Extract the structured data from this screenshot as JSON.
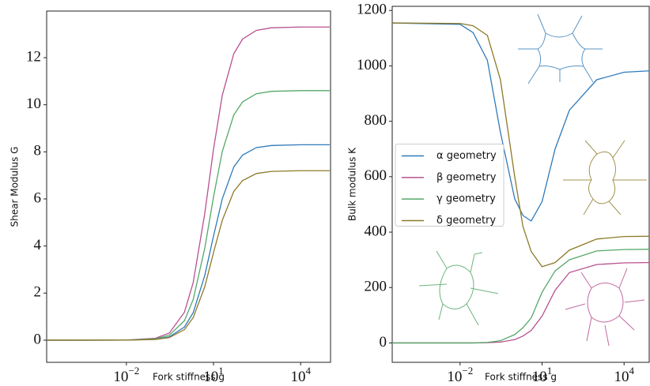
{
  "chart_data": [
    {
      "type": "line",
      "xlabel": "Fork stiffness g",
      "ylabel": "Shear Modulus G",
      "xscale": "log",
      "xlim": [
        1.8e-05,
        107000
      ],
      "ylim": [
        -0.94,
        13.98
      ],
      "xticks": [
        {
          "value": 0.01,
          "label": "10",
          "exponent": "−2"
        },
        {
          "value": 10,
          "label": "10",
          "exponent": "1"
        },
        {
          "value": 10000,
          "label": "10",
          "exponent": "4"
        }
      ],
      "yticks": [
        0,
        2,
        4,
        6,
        8,
        10,
        12
      ],
      "x": [
        1.8e-05,
        0.01,
        0.1,
        0.3,
        1,
        2,
        5,
        10,
        20,
        50,
        100,
        300,
        1000,
        10000,
        100000
      ],
      "series": [
        {
          "name": "α geometry",
          "color": "#2f7ab9",
          "values": [
            0,
            0.002,
            0.037,
            0.14,
            0.56,
            1.17,
            2.75,
            4.42,
            6.0,
            7.36,
            7.86,
            8.18,
            8.27,
            8.3,
            8.3
          ]
        },
        {
          "name": "β geometry",
          "color": "#b8508f",
          "values": [
            0,
            0.005,
            0.082,
            0.3,
            1.19,
            2.45,
            5.38,
            8.11,
            10.4,
            12.17,
            12.79,
            13.16,
            13.27,
            13.3,
            13.3
          ]
        },
        {
          "name": "γ geometry",
          "color": "#55a868",
          "values": [
            0,
            0.004,
            0.056,
            0.21,
            0.83,
            1.73,
            3.91,
            6.08,
            8.01,
            9.57,
            10.12,
            10.47,
            10.57,
            10.6,
            10.6
          ]
        },
        {
          "name": "δ geometry",
          "color": "#8c7a28",
          "values": [
            0,
            0.002,
            0.029,
            0.11,
            0.45,
            0.96,
            2.27,
            3.72,
            5.09,
            6.32,
            6.78,
            7.08,
            7.17,
            7.2,
            7.2
          ]
        }
      ]
    },
    {
      "type": "line",
      "xlabel": "Fork stiffness g",
      "ylabel": "Bulk modulus K",
      "xscale": "log",
      "xlim": [
        3.3e-05,
        83000
      ],
      "ylim": [
        -70,
        1215
      ],
      "xticks": [
        {
          "value": 0.01,
          "label": "10",
          "exponent": "−2"
        },
        {
          "value": 10,
          "label": "10",
          "exponent": "1"
        },
        {
          "value": 10000,
          "label": "10",
          "exponent": "4"
        }
      ],
      "yticks": [
        0,
        200,
        400,
        600,
        800,
        1000,
        1200
      ],
      "x": [
        3.3e-05,
        0.01,
        0.03,
        0.1,
        0.3,
        1,
        2,
        4,
        10,
        30,
        100,
        1000,
        10000,
        83000
      ],
      "legend": "center left",
      "series": [
        {
          "name": "α geometry",
          "color": "#2f7ab9",
          "values": [
            1155,
            1150,
            1120,
            1020,
            760,
            520,
            460,
            440,
            510,
            700,
            840,
            950,
            977,
            982
          ]
        },
        {
          "name": "β geometry",
          "color": "#b8508f",
          "values": [
            0,
            0,
            0,
            1,
            3,
            12,
            25,
            45,
            97,
            190,
            254,
            283,
            289,
            290
          ]
        },
        {
          "name": "γ geometry",
          "color": "#55a868",
          "values": [
            0,
            0,
            0,
            2,
            8,
            30,
            55,
            90,
            183,
            260,
            300,
            332,
            337,
            338
          ]
        },
        {
          "name": "δ geometry",
          "color": "#8c7a28",
          "values": [
            1155,
            1153,
            1145,
            1110,
            950,
            600,
            420,
            330,
            275,
            290,
            335,
            375,
            384,
            385
          ]
        }
      ]
    }
  ]
}
